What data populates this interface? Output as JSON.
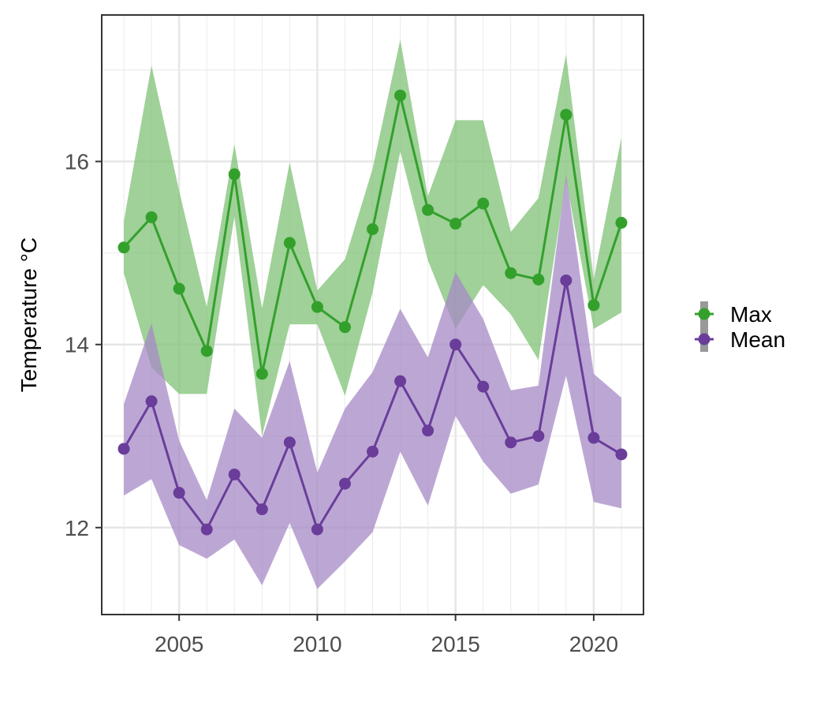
{
  "chart_data": {
    "type": "line",
    "title": "",
    "xlabel": "",
    "ylabel": "Temperature °C",
    "xlim": [
      2002.2,
      2021.8
    ],
    "ylim": [
      11.05,
      17.6
    ],
    "x_ticks": [
      2005,
      2010,
      2015,
      2020
    ],
    "y_ticks": [
      12,
      14,
      16
    ],
    "grid": true,
    "legend": {
      "placement": "right",
      "entries": [
        "Max",
        "Mean"
      ]
    },
    "x": [
      2003,
      2004,
      2005,
      2006,
      2007,
      2008,
      2009,
      2010,
      2011,
      2012,
      2013,
      2014,
      2015,
      2016,
      2017,
      2018,
      2019,
      2020,
      2021
    ],
    "series": [
      {
        "name": "Max",
        "color": "#33a02c",
        "band_color": "#7fc276",
        "values": [
          15.06,
          15.39,
          14.61,
          13.93,
          15.86,
          13.68,
          15.11,
          14.41,
          14.19,
          15.26,
          16.72,
          15.47,
          15.32,
          15.54,
          14.78,
          14.71,
          16.51,
          14.43,
          15.33
        ],
        "lower": [
          14.78,
          13.75,
          13.46,
          13.46,
          15.4,
          13.0,
          14.22,
          14.22,
          13.44,
          14.57,
          16.11,
          14.92,
          14.17,
          14.65,
          14.33,
          13.83,
          15.8,
          14.17,
          14.35
        ],
        "upper": [
          15.35,
          17.05,
          15.68,
          14.41,
          16.19,
          14.39,
          15.99,
          14.59,
          14.93,
          15.92,
          17.33,
          15.62,
          16.45,
          16.45,
          15.23,
          15.6,
          17.17,
          14.71,
          16.26
        ]
      },
      {
        "name": "Mean",
        "color": "#6a3d9a",
        "band_color": "#a58ac5",
        "values": [
          12.86,
          13.38,
          12.38,
          11.98,
          12.58,
          12.2,
          12.93,
          11.98,
          12.48,
          12.83,
          13.6,
          13.06,
          14.0,
          13.54,
          12.93,
          13.0,
          14.7,
          12.98,
          12.8
        ],
        "lower": [
          12.35,
          12.53,
          11.81,
          11.66,
          11.87,
          11.37,
          12.05,
          11.33,
          11.63,
          11.95,
          12.83,
          12.24,
          13.22,
          12.72,
          12.37,
          12.47,
          13.66,
          12.28,
          12.21
        ],
        "upper": [
          13.35,
          14.23,
          12.95,
          12.3,
          13.3,
          12.98,
          13.82,
          12.6,
          13.3,
          13.7,
          14.39,
          13.86,
          14.79,
          14.28,
          13.5,
          13.55,
          15.86,
          13.68,
          13.42
        ]
      }
    ]
  }
}
